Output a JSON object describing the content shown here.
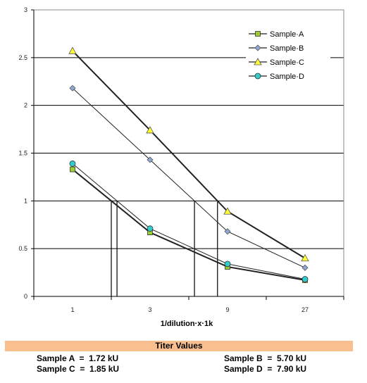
{
  "chart_data": {
    "type": "line",
    "title": "",
    "xlabel": "1/dilution·x·1k",
    "ylabel": "",
    "x": [
      1,
      3,
      9,
      27
    ],
    "x_tick_labels": [
      "1",
      "3",
      "9",
      "27"
    ],
    "y_ticks": [
      "0",
      "0.5",
      "1",
      "1.5",
      "2",
      "2.5",
      "3"
    ],
    "ylim": [
      0,
      3
    ],
    "grid": "horizontal",
    "legend_position": "top-right",
    "series": [
      {
        "name": "Sample·A",
        "values": [
          1.33,
          0.67,
          0.31,
          0.17
        ],
        "marker": "square",
        "color": "#9acd32"
      },
      {
        "name": "Sample·B",
        "values": [
          2.18,
          1.43,
          0.68,
          0.3
        ],
        "marker": "diamond",
        "color": "#8fa7d6"
      },
      {
        "name": "Sample·C",
        "values": [
          2.57,
          1.74,
          0.89,
          0.4
        ],
        "marker": "triangle",
        "color": "#ffff33"
      },
      {
        "name": "Sample·D",
        "values": [
          1.39,
          0.71,
          0.34,
          0.18
        ],
        "marker": "circle",
        "color": "#33cccc"
      }
    ]
  },
  "titer": {
    "heading": "Titer Values",
    "sample_a": "Sample A  =  1.72 kU",
    "sample_b": "Sample B  =  5.70 kU",
    "sample_c": "Sample C  =  1.85 kU",
    "sample_d": "Sample D  =  7.90 kU"
  }
}
